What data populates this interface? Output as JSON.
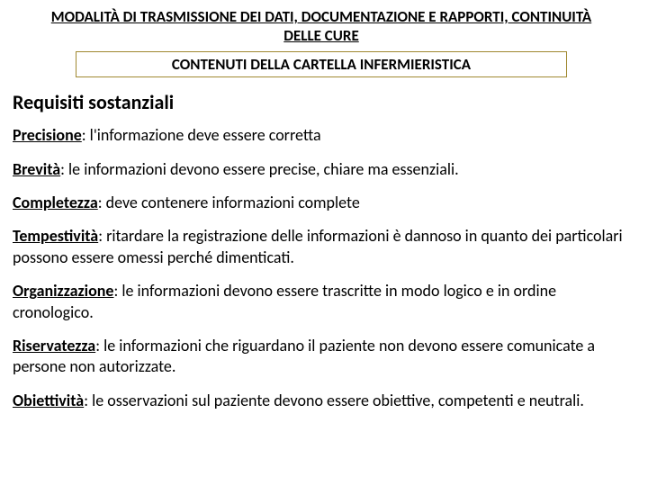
{
  "header": {
    "title": "MODALITÀ DI TRASMISSIONE DEI DATI, DOCUMENTAZIONE E RAPPORTI, CONTINUITÀ DELLE CURE",
    "subheader": "CONTENUTI DELLA CARTELLA INFERMIERISTICA"
  },
  "section_title": "Requisiti sostanziali",
  "items": [
    {
      "term": "Precisione",
      "desc": ": l'informazione deve essere corretta"
    },
    {
      "term": "Brevità",
      "desc": ": le informazioni devono essere precise, chiare ma essenziali."
    },
    {
      "term": "Completezza",
      "desc": ": deve contenere informazioni complete"
    },
    {
      "term": "Tempestività",
      "desc": ": ritardare la registrazione delle informazioni è dannoso in quanto dei particolari possono essere omessi perché dimenticati."
    },
    {
      "term": "Organizzazione",
      "desc": ": le informazioni devono essere trascritte in modo logico e in ordine cronologico."
    },
    {
      "term": "Riservatezza",
      "desc": ": le informazioni che riguardano il paziente non devono essere comunicate a persone non autorizzate."
    },
    {
      "term": "Obiettività",
      "desc": ": le osservazioni sul paziente devono essere obiettive, competenti e neutrali."
    }
  ]
}
